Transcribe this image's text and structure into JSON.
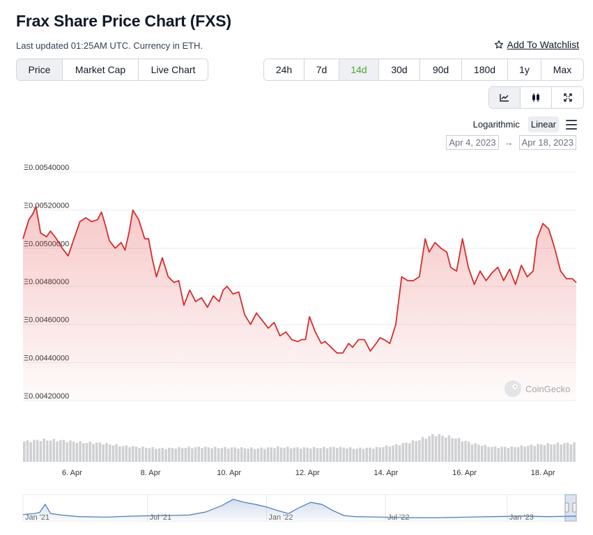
{
  "header": {
    "title": "Frax Share Price Chart (FXS)",
    "subtitle": "Last updated 01:25AM UTC. Currency in ETH.",
    "watchlist_label": "Add To Watchlist",
    "watchlist_icon": "star-icon"
  },
  "type_tabs": [
    {
      "label": "Price",
      "active": true
    },
    {
      "label": "Market Cap",
      "active": false
    },
    {
      "label": "Live Chart",
      "active": false
    }
  ],
  "range_tabs": [
    {
      "label": "24h",
      "active": false
    },
    {
      "label": "7d",
      "active": false
    },
    {
      "label": "14d",
      "active": true
    },
    {
      "label": "30d",
      "active": false
    },
    {
      "label": "90d",
      "active": false
    },
    {
      "label": "180d",
      "active": false
    },
    {
      "label": "1y",
      "active": false
    },
    {
      "label": "Max",
      "active": false
    }
  ],
  "view_buttons": [
    {
      "icon": "line-chart-icon",
      "active": true
    },
    {
      "icon": "candlestick-icon",
      "active": false
    },
    {
      "icon": "expand-icon",
      "active": false
    }
  ],
  "scale": {
    "logarithmic": "Logarithmic",
    "linear": "Linear",
    "active": "Linear",
    "menu_icon": "hamburger-menu-icon"
  },
  "date_range": {
    "from": "Apr 4, 2023",
    "arrow": "→",
    "to": "Apr 18, 2023"
  },
  "colors": {
    "line": "#d62c2c",
    "accent": "#4ba631",
    "volume": "#cfd0d3",
    "navigator": "#4a77b4"
  },
  "chart_data": {
    "type": "line",
    "currency_prefix": "Ξ",
    "ylim": [
      0.0042,
      0.0054
    ],
    "yticks": [
      "Ξ0.00540000",
      "Ξ0.00520000",
      "Ξ0.00500000",
      "Ξ0.00480000",
      "Ξ0.00460000",
      "Ξ0.00440000",
      "Ξ0.00420000"
    ],
    "ytick_values": [
      0.0054,
      0.0052,
      0.005,
      0.0048,
      0.0046,
      0.0044,
      0.0042
    ],
    "xlim": [
      4.75,
      18.85
    ],
    "xticks": [
      {
        "label": "6. Apr",
        "value": 6
      },
      {
        "label": "8. Apr",
        "value": 8
      },
      {
        "label": "10. Apr",
        "value": 10
      },
      {
        "label": "12. Apr",
        "value": 12
      },
      {
        "label": "14. Apr",
        "value": 14
      },
      {
        "label": "16. Apr",
        "value": 16
      },
      {
        "label": "18. Apr",
        "value": 18
      }
    ],
    "series": [
      {
        "x": [
          4.75,
          4.9,
          5.0,
          5.08,
          5.2,
          5.35,
          5.45,
          5.6,
          5.75,
          5.9,
          6.05,
          6.2,
          6.35,
          6.5,
          6.65,
          6.75,
          6.85,
          6.95,
          7.1,
          7.25,
          7.35,
          7.45,
          7.55,
          7.7,
          7.85,
          7.95,
          8.05,
          8.15,
          8.3,
          8.45,
          8.6,
          8.72,
          8.85,
          9.0,
          9.15,
          9.3,
          9.45,
          9.6,
          9.75,
          9.85,
          9.95,
          10.1,
          10.25,
          10.4,
          10.55,
          10.7,
          10.85,
          11.0,
          11.15,
          11.3,
          11.45,
          11.6,
          11.75,
          11.85,
          11.95,
          12.05,
          12.2,
          12.35,
          12.45,
          12.6,
          12.75,
          12.9,
          13.05,
          13.15,
          13.3,
          13.45,
          13.6,
          13.75,
          13.85,
          13.95,
          14.1,
          14.25,
          14.4,
          14.55,
          14.7,
          14.85,
          15.0,
          15.1,
          15.25,
          15.4,
          15.55,
          15.65,
          15.8,
          15.95,
          16.1,
          16.25,
          16.4,
          16.55,
          16.7,
          16.85,
          17.0,
          17.15,
          17.3,
          17.45,
          17.6,
          17.75,
          17.85,
          18.0,
          18.15,
          18.3,
          18.45,
          18.6,
          18.75,
          18.85
        ],
        "y": [
          0.00505,
          0.00515,
          0.00518,
          0.00522,
          0.00508,
          0.00506,
          0.00509,
          0.00505,
          0.005,
          0.00496,
          0.00505,
          0.00514,
          0.00516,
          0.00514,
          0.00515,
          0.00519,
          0.00512,
          0.00504,
          0.005,
          0.00503,
          0.00499,
          0.00508,
          0.0052,
          0.00515,
          0.00505,
          0.00505,
          0.00494,
          0.00485,
          0.00495,
          0.00485,
          0.00482,
          0.00483,
          0.0047,
          0.00478,
          0.00472,
          0.00474,
          0.00469,
          0.00475,
          0.00472,
          0.00478,
          0.0048,
          0.00476,
          0.00477,
          0.00465,
          0.0046,
          0.00466,
          0.00462,
          0.00458,
          0.00461,
          0.00454,
          0.00456,
          0.00452,
          0.00451,
          0.00452,
          0.00452,
          0.00464,
          0.00456,
          0.0045,
          0.00451,
          0.00448,
          0.00445,
          0.00445,
          0.0045,
          0.00448,
          0.00452,
          0.00452,
          0.00446,
          0.0045,
          0.00453,
          0.00452,
          0.0045,
          0.0046,
          0.00485,
          0.00483,
          0.00483,
          0.00485,
          0.00505,
          0.00498,
          0.00503,
          0.005,
          0.00498,
          0.0049,
          0.00488,
          0.00505,
          0.0049,
          0.00481,
          0.00488,
          0.00483,
          0.00487,
          0.0049,
          0.00483,
          0.00489,
          0.00481,
          0.00491,
          0.00485,
          0.00488,
          0.00505,
          0.00513,
          0.0051,
          0.005,
          0.00488,
          0.00484,
          0.00484,
          0.00482
        ]
      }
    ],
    "volume": {
      "x": [
        4.75,
        5.25,
        5.75,
        6.25,
        6.75,
        7.25,
        7.75,
        8.25,
        8.75,
        9.25,
        9.75,
        10.25,
        10.75,
        11.25,
        11.75,
        12.25,
        12.75,
        13.25,
        13.75,
        14.25,
        14.75,
        15.25,
        15.75,
        16.25,
        16.75,
        17.25,
        17.75,
        18.25,
        18.85
      ],
      "values": [
        30,
        33,
        32,
        29,
        28,
        24,
        22,
        20,
        21,
        22,
        21,
        21,
        20,
        22,
        21,
        21,
        22,
        20,
        21,
        25,
        31,
        41,
        36,
        27,
        22,
        22,
        25,
        27,
        28
      ]
    },
    "navigator": {
      "type": "area",
      "xticks": [
        "Jan '21",
        "Jul '21",
        "Jan '22",
        "Jul '22",
        "Jan '23"
      ],
      "x": [
        0,
        0.02,
        0.03,
        0.04,
        0.05,
        0.07,
        0.1,
        0.15,
        0.2,
        0.25,
        0.3,
        0.33,
        0.36,
        0.38,
        0.4,
        0.42,
        0.44,
        0.46,
        0.48,
        0.5,
        0.52,
        0.54,
        0.56,
        0.58,
        0.6,
        0.65,
        0.7,
        0.75,
        0.8,
        0.85,
        0.9,
        0.95,
        1.0
      ],
      "values": [
        10,
        12,
        14,
        30,
        12,
        9,
        6,
        5,
        7,
        8,
        9,
        15,
        28,
        40,
        34,
        30,
        25,
        18,
        12,
        24,
        34,
        30,
        18,
        8,
        6,
        5,
        4,
        4,
        5,
        6,
        7,
        6,
        7
      ]
    }
  },
  "watermark": {
    "label": "CoinGecko",
    "icon": "coingecko-logo-icon"
  }
}
